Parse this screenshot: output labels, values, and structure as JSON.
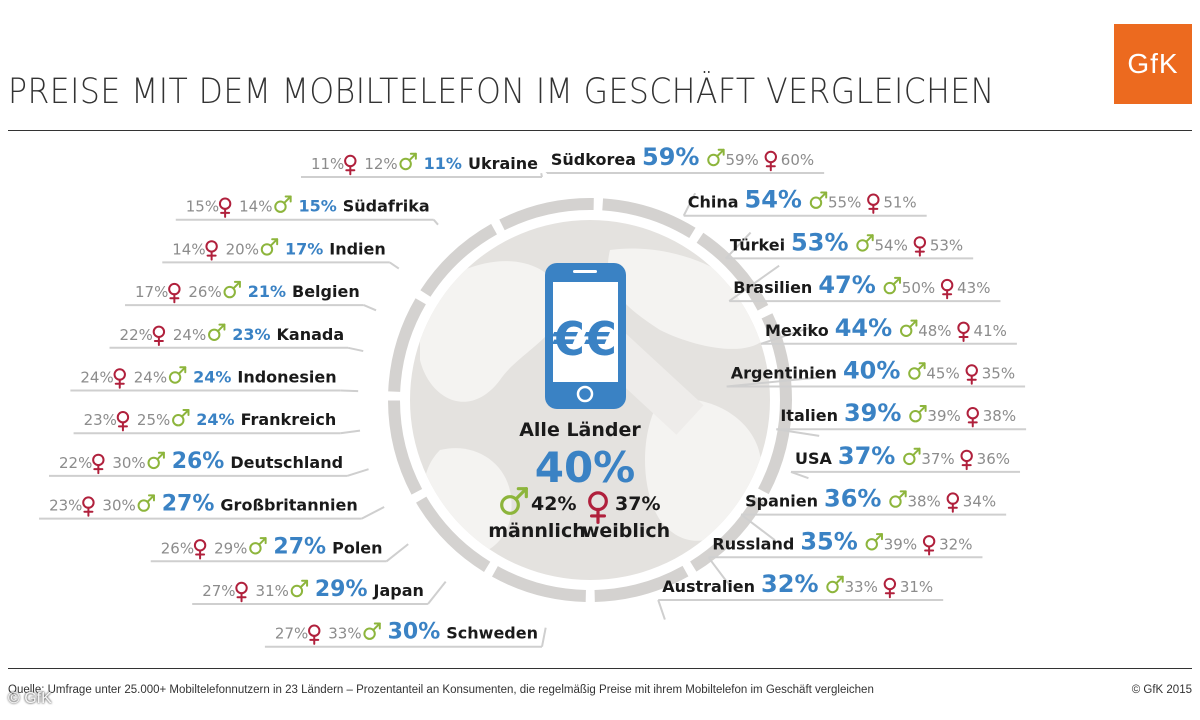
{
  "header": {
    "title": "PREISE MIT DEM MOBILTELEFON IM GESCHÄFT VERGLEICHEN",
    "logo": "GfK"
  },
  "colors": {
    "accent_blue": "#3a82c4",
    "male_green": "#8db53c",
    "female_red": "#b0203c",
    "logo_orange": "#ec6a1f",
    "ring_gray": "#d4d2d0",
    "muted_gray": "#8c8c8c"
  },
  "icons": {
    "male": "male-symbol-icon",
    "female": "female-symbol-icon",
    "phone": "smartphone-euro-icon"
  },
  "center": {
    "label": "Alle Länder",
    "value": "40%",
    "male_value": "42%",
    "female_value": "37%",
    "male_label": "männlich",
    "female_label": "weiblich",
    "phone_text": "€€"
  },
  "chart_data": {
    "type": "table",
    "title": "PREISE MIT DEM MOBILTELEFON IM GESCHÄFT VERGLEICHEN",
    "columns": [
      "country",
      "total",
      "male",
      "female"
    ],
    "overall": {
      "country": "Alle Länder",
      "total": 40,
      "male": 42,
      "female": 37
    },
    "left": [
      {
        "country": "Ukraine",
        "total": 11,
        "male": 12,
        "female": 11,
        "fmt": "fm"
      },
      {
        "country": "Südafrika",
        "total": 15,
        "male": 14,
        "female": 15,
        "fmt": "fm"
      },
      {
        "country": "Indien",
        "total": 17,
        "male": 20,
        "female": 14,
        "fmt": "fm"
      },
      {
        "country": "Belgien",
        "total": 21,
        "male": 26,
        "female": 17,
        "fmt": "fm"
      },
      {
        "country": "Kanada",
        "total": 23,
        "male": 24,
        "female": 22,
        "fmt": "fm"
      },
      {
        "country": "Indonesien",
        "total": 24,
        "male": 24,
        "female": 24,
        "fmt": "fm"
      },
      {
        "country": "Frankreich",
        "total": 24,
        "male": 25,
        "female": 23,
        "fmt": "fm"
      },
      {
        "country": "Deutschland",
        "total": 26,
        "male": 30,
        "female": 22,
        "fmt": "fm"
      },
      {
        "country": "Großbritannien",
        "total": 27,
        "male": 30,
        "female": 23,
        "fmt": "fm"
      },
      {
        "country": "Polen",
        "total": 27,
        "male": 29,
        "female": 26,
        "fmt": "fm"
      },
      {
        "country": "Japan",
        "total": 29,
        "male": 31,
        "female": 27,
        "fmt": "fm"
      },
      {
        "country": "Schweden",
        "total": 30,
        "male": 33,
        "female": 27,
        "fmt": "fm"
      }
    ],
    "right": [
      {
        "country": "Südkorea",
        "total": 59,
        "male": 59,
        "female": 60
      },
      {
        "country": "China",
        "total": 54,
        "male": 55,
        "female": 51
      },
      {
        "country": "Türkei",
        "total": 53,
        "male": 54,
        "female": 53
      },
      {
        "country": "Brasilien",
        "total": 47,
        "male": 50,
        "female": 43
      },
      {
        "country": "Mexiko",
        "total": 44,
        "male": 48,
        "female": 41
      },
      {
        "country": "Argentinien",
        "total": 40,
        "male": 45,
        "female": 35
      },
      {
        "country": "Italien",
        "total": 39,
        "male": 39,
        "female": 38
      },
      {
        "country": "USA",
        "total": 37,
        "male": 37,
        "female": 36
      },
      {
        "country": "Spanien",
        "total": 36,
        "male": 38,
        "female": 34
      },
      {
        "country": "Russland",
        "total": 35,
        "male": 39,
        "female": 32
      },
      {
        "country": "Australien",
        "total": 32,
        "male": 33,
        "female": 31
      }
    ]
  },
  "footer": {
    "source": "Quelle: Umfrage unter 25.000+ Mobiltelefonnutzern in 23 Ländern – Prozentanteil an Konsumenten, die regelmäßig Preise mit ihrem Mobiltelefon im Geschäft vergleichen",
    "copyright": "© GfK 2015",
    "watermark": "© GfK"
  }
}
